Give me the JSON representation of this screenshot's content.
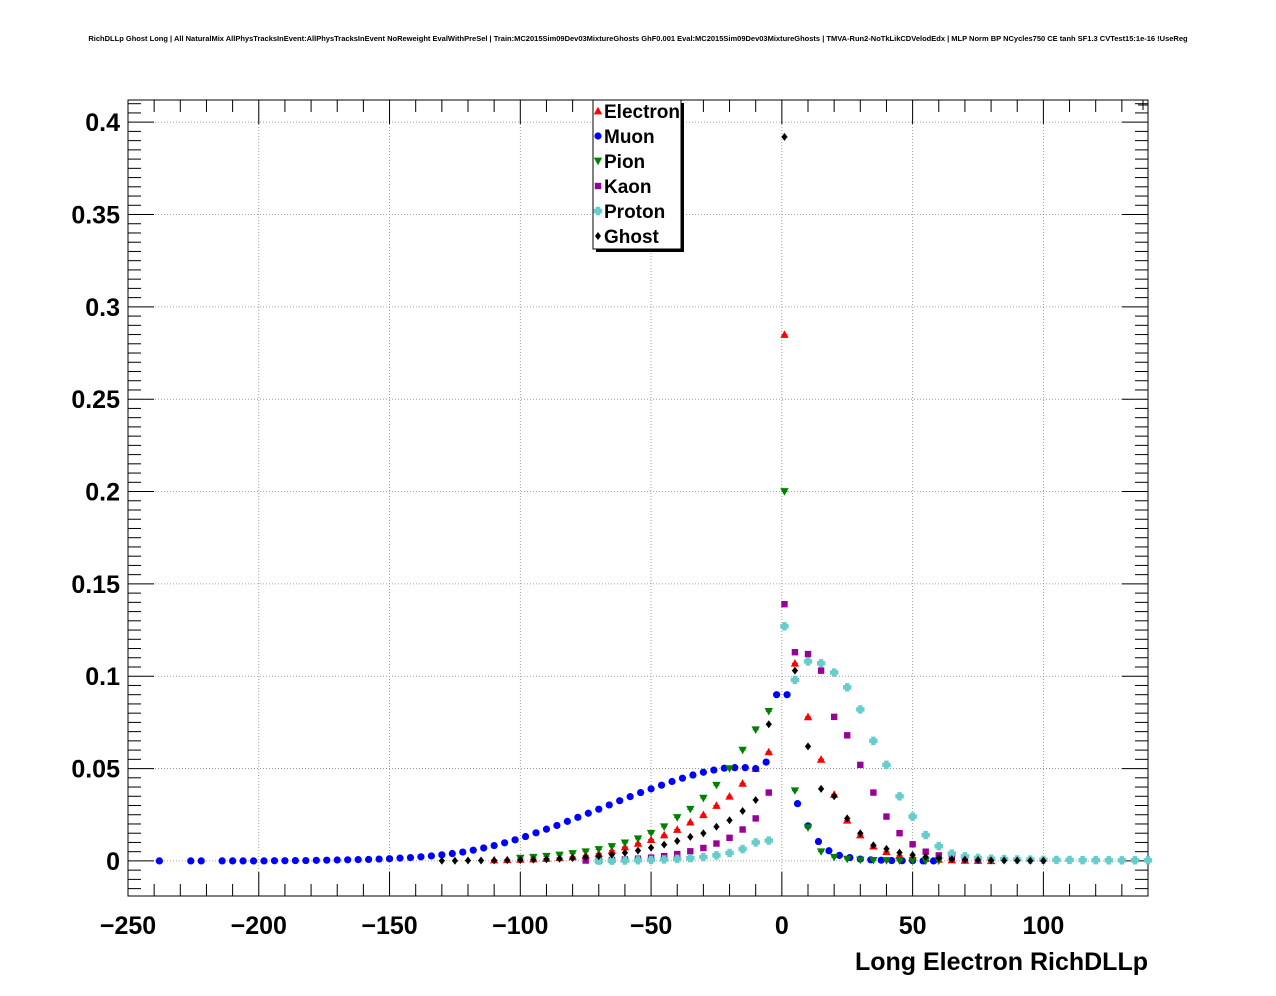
{
  "chart_data": {
    "type": "scatter",
    "title": "RichDLLp Ghost Long | All NaturalMix AllPhysTracksInEvent:AllPhysTracksInEvent NoReweight EvalWithPreSel | Train:MC2015Sim09Dev03MixtureGhosts GhF0.001 Eval:MC2015Sim09Dev03MixtureGhosts | TMVA-Run2-NoTkLikCDVelodEdx | MLP Norm BP NCycles750 CE tanh SF1.3 CVTest15:1e-16 !UseReg",
    "xlabel": "Long Electron RichDLLp",
    "ylabel": "",
    "xlim": [
      -250,
      140
    ],
    "ylim": [
      -0.019,
      0.412
    ],
    "grid": true,
    "legend_position": "top-center",
    "x_ticks": [
      -250,
      -200,
      -150,
      -100,
      -50,
      0,
      50,
      100
    ],
    "x_tick_labels": [
      "−250",
      "−200",
      "−150",
      "−100",
      "−50",
      "0",
      "50",
      "100"
    ],
    "y_ticks": [
      0,
      0.05,
      0.1,
      0.15,
      0.2,
      0.25,
      0.3,
      0.35,
      0.4
    ],
    "y_tick_labels": [
      "0",
      "0.05",
      "0.1",
      "0.15",
      "0.2",
      "0.25",
      "0.3",
      "0.35",
      "0.4"
    ],
    "series": [
      {
        "name": "Electron",
        "color": "#ff0000",
        "marker": "triangle-up",
        "x": [
          -110,
          -105,
          -100,
          -95,
          -90,
          -85,
          -80,
          -75,
          -70,
          -65,
          -60,
          -55,
          -50,
          -45,
          -40,
          -35,
          -30,
          -25,
          -20,
          -15,
          -10,
          -5,
          1,
          5,
          10,
          15,
          20,
          25,
          30,
          35,
          40,
          45,
          50,
          55,
          60,
          65,
          70,
          75,
          80
        ],
        "y": [
          0.0005,
          0.0006,
          0.0008,
          0.001,
          0.0013,
          0.0017,
          0.0022,
          0.003,
          0.004,
          0.0055,
          0.0075,
          0.0095,
          0.0115,
          0.014,
          0.017,
          0.021,
          0.025,
          0.03,
          0.035,
          0.042,
          0.05,
          0.059,
          0.285,
          0.107,
          0.078,
          0.055,
          0.036,
          0.022,
          0.014,
          0.008,
          0.005,
          0.003,
          0.002,
          0.0012,
          0.0008,
          0.0005,
          0.0003,
          0.0002,
          0.0001
        ]
      },
      {
        "name": "Muon",
        "color": "#0000ff",
        "marker": "circle",
        "x": [
          -238,
          -226,
          -222,
          -214,
          -210,
          -206,
          -202,
          -198,
          -194,
          -190,
          -186,
          -182,
          -178,
          -174,
          -170,
          -166,
          -162,
          -158,
          -154,
          -150,
          -146,
          -142,
          -138,
          -134,
          -130,
          -126,
          -122,
          -118,
          -114,
          -110,
          -106,
          -102,
          -98,
          -94,
          -90,
          -86,
          -82,
          -78,
          -74,
          -70,
          -66,
          -62,
          -58,
          -54,
          -50,
          -46,
          -42,
          -38,
          -34,
          -30,
          -26,
          -22,
          -18,
          -14,
          -10,
          -6,
          -2,
          2,
          6,
          10,
          14,
          18,
          22,
          26,
          30,
          34,
          38,
          42,
          46,
          50,
          54,
          58
        ],
        "y": [
          0,
          0,
          0,
          0,
          0,
          0,
          0,
          0,
          0.0001,
          0.0001,
          0.0002,
          0.0002,
          0.0003,
          0.0004,
          0.0005,
          0.0006,
          0.0007,
          0.0008,
          0.001,
          0.0012,
          0.0015,
          0.0018,
          0.0022,
          0.0027,
          0.0033,
          0.004,
          0.0048,
          0.0058,
          0.007,
          0.0083,
          0.0098,
          0.0114,
          0.0132,
          0.0152,
          0.0172,
          0.0192,
          0.0214,
          0.0236,
          0.0258,
          0.028,
          0.0303,
          0.0326,
          0.0348,
          0.037,
          0.039,
          0.041,
          0.043,
          0.0448,
          0.0465,
          0.048,
          0.0492,
          0.0502,
          0.0505,
          0.0505,
          0.05,
          0.0535,
          0.09,
          0.09,
          0.031,
          0.019,
          0.0105,
          0.0055,
          0.003,
          0.0018,
          0.001,
          0.0006,
          0.0004,
          0.0002,
          0.0001,
          0.0001,
          0,
          0
        ]
      },
      {
        "name": "Pion",
        "color": "#008000",
        "marker": "triangle-down",
        "x": [
          -100,
          -95,
          -90,
          -85,
          -80,
          -75,
          -70,
          -65,
          -60,
          -55,
          -50,
          -45,
          -40,
          -35,
          -30,
          -25,
          -20,
          -15,
          -10,
          -5,
          1,
          5,
          10,
          15,
          20,
          25,
          30,
          35,
          40,
          45,
          50,
          55,
          60
        ],
        "y": [
          0.0015,
          0.002,
          0.0025,
          0.0032,
          0.004,
          0.005,
          0.0062,
          0.0078,
          0.0098,
          0.012,
          0.015,
          0.0185,
          0.0235,
          0.028,
          0.034,
          0.041,
          0.05,
          0.06,
          0.071,
          0.081,
          0.2,
          0.038,
          0.018,
          0.005,
          0.002,
          0.001,
          0.0005,
          0.0003,
          0.0002,
          0.0001,
          0.0001,
          0,
          0
        ]
      },
      {
        "name": "Kaon",
        "color": "#990099",
        "marker": "square",
        "x": [
          -75,
          -70,
          -65,
          -60,
          -55,
          -50,
          -45,
          -40,
          -35,
          -30,
          -25,
          -20,
          -15,
          -10,
          -5,
          1,
          5,
          10,
          15,
          20,
          25,
          30,
          35,
          40,
          45,
          50,
          55,
          60,
          65,
          70,
          75
        ],
        "y": [
          0.0002,
          0.0003,
          0.0005,
          0.0008,
          0.0012,
          0.0018,
          0.0026,
          0.0037,
          0.0052,
          0.007,
          0.0094,
          0.0125,
          0.017,
          0.023,
          0.037,
          0.139,
          0.113,
          0.112,
          0.103,
          0.078,
          0.068,
          0.052,
          0.037,
          0.024,
          0.015,
          0.009,
          0.005,
          0.003,
          0.0018,
          0.001,
          0.0006
        ]
      },
      {
        "name": "Proton",
        "color": "#66cccc",
        "marker": "cross",
        "x": [
          -70,
          -65,
          -60,
          -55,
          -50,
          -45,
          -40,
          -35,
          -30,
          -25,
          -20,
          -15,
          -10,
          -5,
          1,
          5,
          10,
          15,
          20,
          25,
          30,
          35,
          40,
          45,
          50,
          55,
          60,
          65,
          70,
          75,
          80,
          85,
          90,
          95,
          100,
          105,
          110,
          115,
          120,
          125,
          130,
          135,
          140
        ],
        "y": [
          0.0001,
          0.0001,
          0.0002,
          0.0003,
          0.0005,
          0.0008,
          0.0011,
          0.0015,
          0.0021,
          0.003,
          0.0043,
          0.0064,
          0.01,
          0.011,
          0.127,
          0.098,
          0.108,
          0.107,
          0.102,
          0.094,
          0.082,
          0.065,
          0.052,
          0.035,
          0.024,
          0.014,
          0.008,
          0.004,
          0.0025,
          0.0017,
          0.0012,
          0.001,
          0.0008,
          0.0007,
          0.0006,
          0.0005,
          0.0005,
          0.0004,
          0.0004,
          0.0003,
          0.0003,
          0.0003,
          0.0003
        ]
      },
      {
        "name": "Ghost",
        "color": "#000000",
        "marker": "diamond",
        "x": [
          -130,
          -125,
          -120,
          -115,
          -110,
          -105,
          -100,
          -95,
          -90,
          -85,
          -80,
          -75,
          -70,
          -65,
          -60,
          -55,
          -50,
          -45,
          -40,
          -35,
          -30,
          -25,
          -20,
          -15,
          -10,
          -5,
          1,
          5,
          10,
          15,
          20,
          25,
          30,
          35,
          40,
          45,
          50,
          55,
          60,
          65,
          70,
          75,
          80,
          85,
          90,
          95,
          100
        ],
        "y": [
          0.0001,
          0.0001,
          0.0002,
          0.0002,
          0.0003,
          0.0004,
          0.0005,
          0.0007,
          0.0009,
          0.0012,
          0.0015,
          0.002,
          0.0026,
          0.0034,
          0.0044,
          0.0056,
          0.0071,
          0.0088,
          0.0108,
          0.013,
          0.015,
          0.0185,
          0.022,
          0.027,
          0.033,
          0.074,
          0.392,
          0.103,
          0.062,
          0.039,
          0.035,
          0.023,
          0.015,
          0.0085,
          0.0065,
          0.0045,
          0.0032,
          0.0022,
          0.0015,
          0.001,
          0.0007,
          0.0005,
          0.0003,
          0.0002,
          0.0002,
          0.0001,
          0.0001
        ]
      }
    ]
  }
}
